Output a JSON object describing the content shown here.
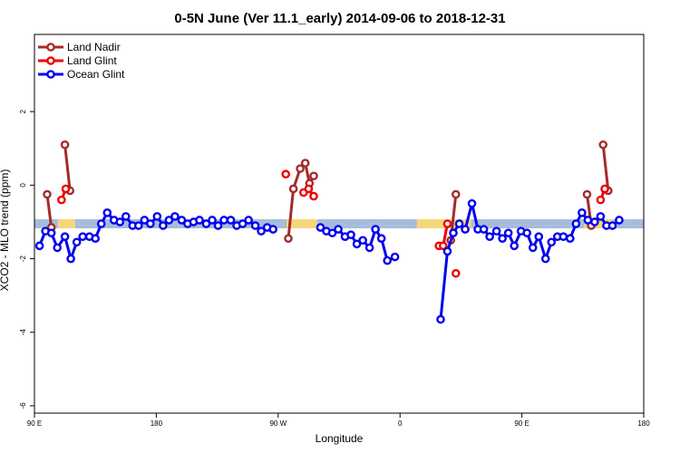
{
  "chart_data": {
    "type": "line",
    "title": "0-5N June (Ver 11.1_early)   2014-09-06 to 2018-12-31",
    "xlabel": "Longitude",
    "ylabel": "XCO2 - MLO trend (ppm)",
    "xlim": [
      90,
      450
    ],
    "ylim": [
      -6.2,
      4.1
    ],
    "x_ticks": [
      {
        "value": 90,
        "label": "90 E"
      },
      {
        "value": 162,
        "label": "180"
      },
      {
        "value": 234,
        "label": "90 W"
      },
      {
        "value": 306,
        "label": "0"
      },
      {
        "value": 378,
        "label": "90 E"
      },
      {
        "value": 450,
        "label": "180"
      }
    ],
    "y_ticks": [
      {
        "value": 2,
        "label": "2"
      },
      {
        "value": 0,
        "label": "0"
      },
      {
        "value": -2,
        "label": "-2"
      },
      {
        "value": -4,
        "label": "-4"
      },
      {
        "value": -6,
        "label": "-6"
      }
    ],
    "legend_position": "top-left",
    "band": {
      "y": -1.05,
      "segments": [
        {
          "x0": 90,
          "x1": 104,
          "color": "#a6bddb"
        },
        {
          "x0": 104,
          "x1": 114,
          "color": "#f5d67a"
        },
        {
          "x0": 114,
          "x1": 239,
          "color": "#a6bddb"
        },
        {
          "x0": 239,
          "x1": 257,
          "color": "#f5d67a"
        },
        {
          "x0": 257,
          "x1": 316,
          "color": "#a6bddb"
        },
        {
          "x0": 316,
          "x1": 348,
          "color": "#f5d67a"
        },
        {
          "x0": 348,
          "x1": 415,
          "color": "#a6bddb"
        },
        {
          "x0": 415,
          "x1": 432,
          "color": "#f5d67a"
        },
        {
          "x0": 432,
          "x1": 450,
          "color": "#a6bddb"
        }
      ]
    },
    "series": [
      {
        "name": "Land Nadir",
        "color": "#a52a2a",
        "segments": [
          [
            {
              "x": 97.5,
              "y": -0.25
            },
            {
              "x": 100.0,
              "y": -1.15
            }
          ],
          [
            {
              "x": 108.0,
              "y": 1.1
            },
            {
              "x": 111.0,
              "y": -0.15
            }
          ],
          [
            {
              "x": 240.0,
              "y": -1.45
            },
            {
              "x": 243.0,
              "y": -0.1
            },
            {
              "x": 247.0,
              "y": 0.45
            },
            {
              "x": 250.0,
              "y": 0.6
            },
            {
              "x": 252.5,
              "y": 0.05
            },
            {
              "x": 255.0,
              "y": 0.25
            }
          ],
          [
            {
              "x": 336.0,
              "y": -1.5
            },
            {
              "x": 339.0,
              "y": -0.25
            }
          ],
          [
            {
              "x": 416.5,
              "y": -0.25
            },
            {
              "x": 419.0,
              "y": -1.1
            }
          ],
          [
            {
              "x": 426.0,
              "y": 1.1
            },
            {
              "x": 429.0,
              "y": -0.15
            }
          ]
        ]
      },
      {
        "name": "Land Glint",
        "color": "#ee0000",
        "segments": [
          [
            {
              "x": 106.0,
              "y": -0.4
            },
            {
              "x": 108.5,
              "y": -0.1
            }
          ],
          [
            {
              "x": 238.5,
              "y": 0.3
            }
          ],
          [
            {
              "x": 249.0,
              "y": -0.2
            },
            {
              "x": 252.0,
              "y": -0.1
            },
            {
              "x": 255.0,
              "y": -0.3
            }
          ],
          [
            {
              "x": 329.0,
              "y": -1.65
            },
            {
              "x": 331.5,
              "y": -1.65
            },
            {
              "x": 334.0,
              "y": -1.05
            }
          ],
          [
            {
              "x": 339.0,
              "y": -2.4
            }
          ],
          [
            {
              "x": 424.5,
              "y": -0.4
            },
            {
              "x": 427.0,
              "y": -0.1
            }
          ]
        ]
      },
      {
        "name": "Ocean Glint",
        "color": "#0000ee",
        "segments": [
          [
            {
              "x": 93.0,
              "y": -1.65
            },
            {
              "x": 96.5,
              "y": -1.25
            },
            {
              "x": 100.0,
              "y": -1.3
            },
            {
              "x": 103.5,
              "y": -1.7
            },
            {
              "x": 108.0,
              "y": -1.4
            },
            {
              "x": 111.5,
              "y": -2.0
            },
            {
              "x": 115.0,
              "y": -1.55
            },
            {
              "x": 118.5,
              "y": -1.4
            },
            {
              "x": 122.5,
              "y": -1.4
            },
            {
              "x": 126.0,
              "y": -1.45
            },
            {
              "x": 129.5,
              "y": -1.05
            },
            {
              "x": 133.0,
              "y": -0.75
            },
            {
              "x": 137.0,
              "y": -0.95
            },
            {
              "x": 140.5,
              "y": -1.0
            },
            {
              "x": 144.0,
              "y": -0.85
            },
            {
              "x": 148.0,
              "y": -1.1
            },
            {
              "x": 151.5,
              "y": -1.1
            },
            {
              "x": 155.0,
              "y": -0.95
            },
            {
              "x": 158.5,
              "y": -1.05
            },
            {
              "x": 162.5,
              "y": -0.85
            },
            {
              "x": 166.0,
              "y": -1.1
            },
            {
              "x": 169.5,
              "y": -0.95
            },
            {
              "x": 173.0,
              "y": -0.85
            },
            {
              "x": 177.0,
              "y": -0.95
            },
            {
              "x": 180.5,
              "y": -1.05
            },
            {
              "x": 184.0,
              "y": -1.0
            },
            {
              "x": 187.5,
              "y": -0.95
            },
            {
              "x": 191.5,
              "y": -1.05
            },
            {
              "x": 195.0,
              "y": -0.95
            },
            {
              "x": 198.5,
              "y": -1.1
            },
            {
              "x": 202.0,
              "y": -0.95
            },
            {
              "x": 206.0,
              "y": -0.95
            },
            {
              "x": 209.5,
              "y": -1.1
            },
            {
              "x": 213.0,
              "y": -1.05
            },
            {
              "x": 216.5,
              "y": -0.95
            },
            {
              "x": 220.5,
              "y": -1.1
            },
            {
              "x": 224.0,
              "y": -1.25
            },
            {
              "x": 227.5,
              "y": -1.15
            },
            {
              "x": 231.0,
              "y": -1.2
            }
          ],
          [
            {
              "x": 259.0,
              "y": -1.15
            },
            {
              "x": 262.5,
              "y": -1.25
            },
            {
              "x": 266.0,
              "y": -1.3
            },
            {
              "x": 269.5,
              "y": -1.2
            },
            {
              "x": 273.5,
              "y": -1.4
            },
            {
              "x": 277.0,
              "y": -1.35
            },
            {
              "x": 280.5,
              "y": -1.6
            },
            {
              "x": 284.0,
              "y": -1.5
            },
            {
              "x": 288.0,
              "y": -1.7
            },
            {
              "x": 291.5,
              "y": -1.2
            },
            {
              "x": 295.0,
              "y": -1.45
            },
            {
              "x": 298.5,
              "y": -2.05
            },
            {
              "x": 303.0,
              "y": -1.95
            }
          ],
          [
            {
              "x": 330.0,
              "y": -3.65
            },
            {
              "x": 334.0,
              "y": -1.8
            },
            {
              "x": 337.5,
              "y": -1.3
            },
            {
              "x": 341.0,
              "y": -1.05
            },
            {
              "x": 344.5,
              "y": -1.2
            },
            {
              "x": 348.5,
              "y": -0.5
            },
            {
              "x": 352.0,
              "y": -1.2
            },
            {
              "x": 355.5,
              "y": -1.2
            },
            {
              "x": 359.0,
              "y": -1.4
            },
            {
              "x": 363.0,
              "y": -1.25
            },
            {
              "x": 366.5,
              "y": -1.45
            },
            {
              "x": 370.0,
              "y": -1.3
            },
            {
              "x": 373.5,
              "y": -1.65
            },
            {
              "x": 377.5,
              "y": -1.25
            },
            {
              "x": 381.0,
              "y": -1.3
            },
            {
              "x": 384.5,
              "y": -1.7
            },
            {
              "x": 388.0,
              "y": -1.4
            },
            {
              "x": 392.0,
              "y": -2.0
            },
            {
              "x": 395.5,
              "y": -1.55
            },
            {
              "x": 399.0,
              "y": -1.4
            },
            {
              "x": 402.5,
              "y": -1.4
            },
            {
              "x": 406.5,
              "y": -1.45
            },
            {
              "x": 410.0,
              "y": -1.05
            },
            {
              "x": 413.5,
              "y": -0.75
            },
            {
              "x": 417.0,
              "y": -0.95
            },
            {
              "x": 421.0,
              "y": -1.0
            },
            {
              "x": 424.5,
              "y": -0.85
            },
            {
              "x": 428.0,
              "y": -1.1
            },
            {
              "x": 431.5,
              "y": -1.1
            },
            {
              "x": 435.5,
              "y": -0.95
            }
          ]
        ]
      }
    ]
  }
}
